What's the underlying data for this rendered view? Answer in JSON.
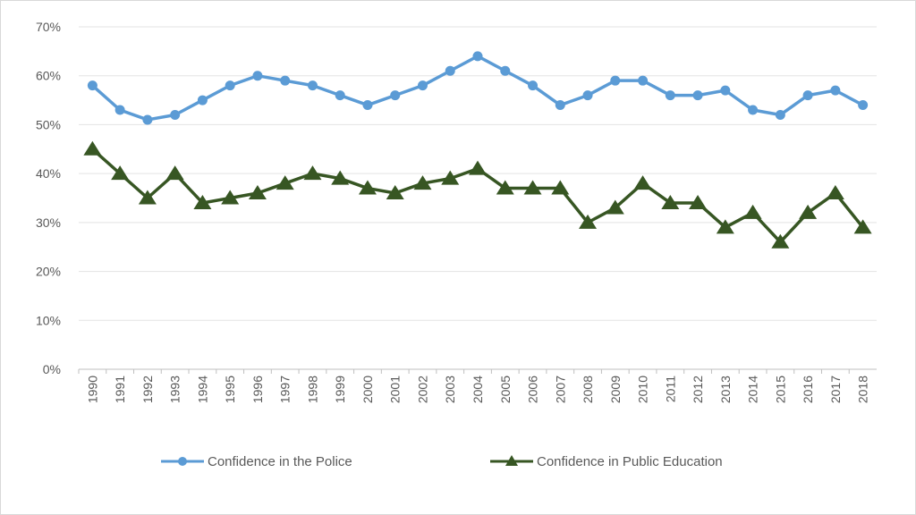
{
  "chart_data": {
    "type": "line",
    "title": "",
    "xlabel": "",
    "ylabel": "",
    "ylim": [
      0,
      70
    ],
    "yticks": [
      "0%",
      "10%",
      "20%",
      "30%",
      "40%",
      "50%",
      "60%",
      "70%"
    ],
    "grid": true,
    "legend_position": "bottom",
    "categories": [
      "1990",
      "1991",
      "1992",
      "1993",
      "1994",
      "1995",
      "1996",
      "1997",
      "1998",
      "1999",
      "2000",
      "2001",
      "2002",
      "2003",
      "2004",
      "2005",
      "2006",
      "2007",
      "2008",
      "2009",
      "2010",
      "2011",
      "2012",
      "2013",
      "2014",
      "2015",
      "2016",
      "2017",
      "2018"
    ],
    "series": [
      {
        "name": "Confidence in the Police",
        "color": "#5B9BD5",
        "marker": "circle",
        "values": [
          58,
          53,
          51,
          52,
          55,
          58,
          60,
          59,
          58,
          56,
          54,
          56,
          58,
          61,
          64,
          61,
          58,
          54,
          56,
          59,
          59,
          56,
          56,
          57,
          53,
          52,
          56,
          57,
          54
        ]
      },
      {
        "name": "Confidence in Public Education",
        "color": "#375623",
        "marker": "triangle",
        "values": [
          45,
          40,
          35,
          40,
          34,
          35,
          36,
          38,
          40,
          39,
          37,
          36,
          38,
          39,
          41,
          37,
          37,
          37,
          30,
          33,
          38,
          34,
          34,
          29,
          32,
          26,
          32,
          36,
          29
        ]
      }
    ]
  }
}
